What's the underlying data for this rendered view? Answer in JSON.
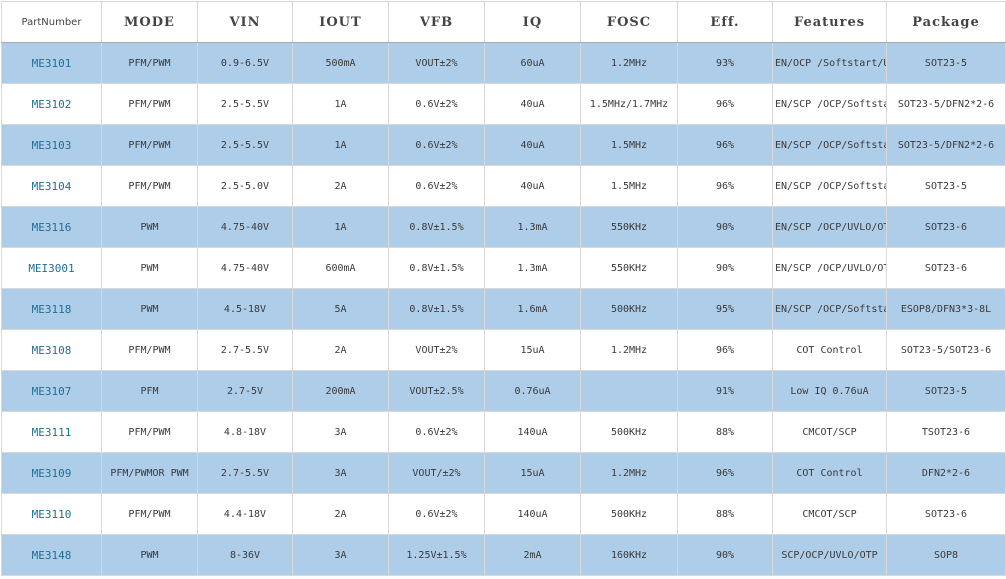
{
  "headers": [
    "PartNumber",
    "MODE",
    "VIN",
    "IOUT",
    "VFB",
    "IQ",
    "FOSC",
    "Eff.",
    "Features",
    "Package"
  ],
  "rows": [
    {
      "part": "ME3101",
      "mode": "PFM/PWM",
      "vin": "0.9-6.5V",
      "iout": "500mA",
      "vfb": "VOUT±2%",
      "iq": "60uA",
      "fosc": "1.2MHz",
      "eff": "93%",
      "features": "EN/OCP /Softstart/UVLO",
      "package": "SOT23-5"
    },
    {
      "part": "ME3102",
      "mode": "PFM/PWM",
      "vin": "2.5-5.5V",
      "iout": "1A",
      "vfb": "0.6V±2%",
      "iq": "40uA",
      "fosc": "1.5MHz/1.7MHz",
      "eff": "96%",
      "features": "EN/SCP /OCP/Softstart/OTP",
      "package": "SOT23-5/DFN2*2-6"
    },
    {
      "part": "ME3103",
      "mode": "PFM/PWM",
      "vin": "2.5-5.5V",
      "iout": "1A",
      "vfb": "0.6V±2%",
      "iq": "40uA",
      "fosc": "1.5MHz",
      "eff": "96%",
      "features": "EN/SCP /OCP/Softstart/OTP",
      "package": "SOT23-5/DFN2*2-6"
    },
    {
      "part": "ME3104",
      "mode": "PFM/PWM",
      "vin": "2.5-5.0V",
      "iout": "2A",
      "vfb": "0.6V±2%",
      "iq": "40uA",
      "fosc": "1.5MHz",
      "eff": "96%",
      "features": "EN/SCP /OCP/Softstart/OTP",
      "package": "SOT23-5"
    },
    {
      "part": "ME3116",
      "mode": "PWM",
      "vin": "4.75-40V",
      "iout": "1A",
      "vfb": "0.8V±1.5%",
      "iq": "1.3mA",
      "fosc": "550KHz",
      "eff": "90%",
      "features": "EN/SCP /OCP/UVLO/OTP",
      "package": "SOT23-6"
    },
    {
      "part": "MEI3001",
      "mode": "PWM",
      "vin": "4.75-40V",
      "iout": "600mA",
      "vfb": "0.8V±1.5%",
      "iq": "1.3mA",
      "fosc": "550KHz",
      "eff": "90%",
      "features": "EN/SCP /OCP/UVLO/OTP",
      "package": "SOT23-6"
    },
    {
      "part": "ME3118",
      "mode": "PWM",
      "vin": "4.5-18V",
      "iout": "5A",
      "vfb": "0.8V±1.5%",
      "iq": "1.6mA",
      "fosc": "500KHz",
      "eff": "95%",
      "features": "EN/SCP /OCP/Softstart/OTP",
      "package": "ESOP8/DFN3*3-8L"
    },
    {
      "part": "ME3108",
      "mode": "PFM/PWM",
      "vin": "2.7-5.5V",
      "iout": "2A",
      "vfb": "VOUT±2%",
      "iq": "15uA",
      "fosc": "1.2MHz",
      "eff": "96%",
      "features": "COT Control",
      "package": "SOT23-5/SOT23-6"
    },
    {
      "part": "ME3107",
      "mode": "PFM",
      "vin": "2.7-5V",
      "iout": "200mA",
      "vfb": "VOUT±2.5%",
      "iq": "0.76uA",
      "fosc": "",
      "eff": "91%",
      "features": "Low IQ 0.76uA",
      "package": "SOT23-5"
    },
    {
      "part": "ME3111",
      "mode": "PFM/PWM",
      "vin": "4.8-18V",
      "iout": "3A",
      "vfb": "0.6V±2%",
      "iq": "140uA",
      "fosc": "500KHz",
      "eff": "88%",
      "features": "CMCOT/SCP",
      "package": "TSOT23-6"
    },
    {
      "part": "ME3109",
      "mode": "PFM/PWMOR PWM",
      "vin": "2.7-5.5V",
      "iout": "3A",
      "vfb": "VOUT/±2%",
      "iq": "15uA",
      "fosc": "1.2MHz",
      "eff": "96%",
      "features": "COT Control",
      "package": "DFN2*2-6"
    },
    {
      "part": "ME3110",
      "mode": "PFM/PWM",
      "vin": "4.4-18V",
      "iout": "2A",
      "vfb": "0.6V±2%",
      "iq": "140uA",
      "fosc": "500KHz",
      "eff": "88%",
      "features": "CMCOT/SCP",
      "package": "SOT23-6"
    },
    {
      "part": "ME3148",
      "mode": "PWM",
      "vin": "8-36V",
      "iout": "3A",
      "vfb": "1.25V±1.5%",
      "iq": "2mA",
      "fosc": "160KHz",
      "eff": "90%",
      "features": "SCP/OCP/UVLO/OTP",
      "package": "SOP8"
    }
  ]
}
